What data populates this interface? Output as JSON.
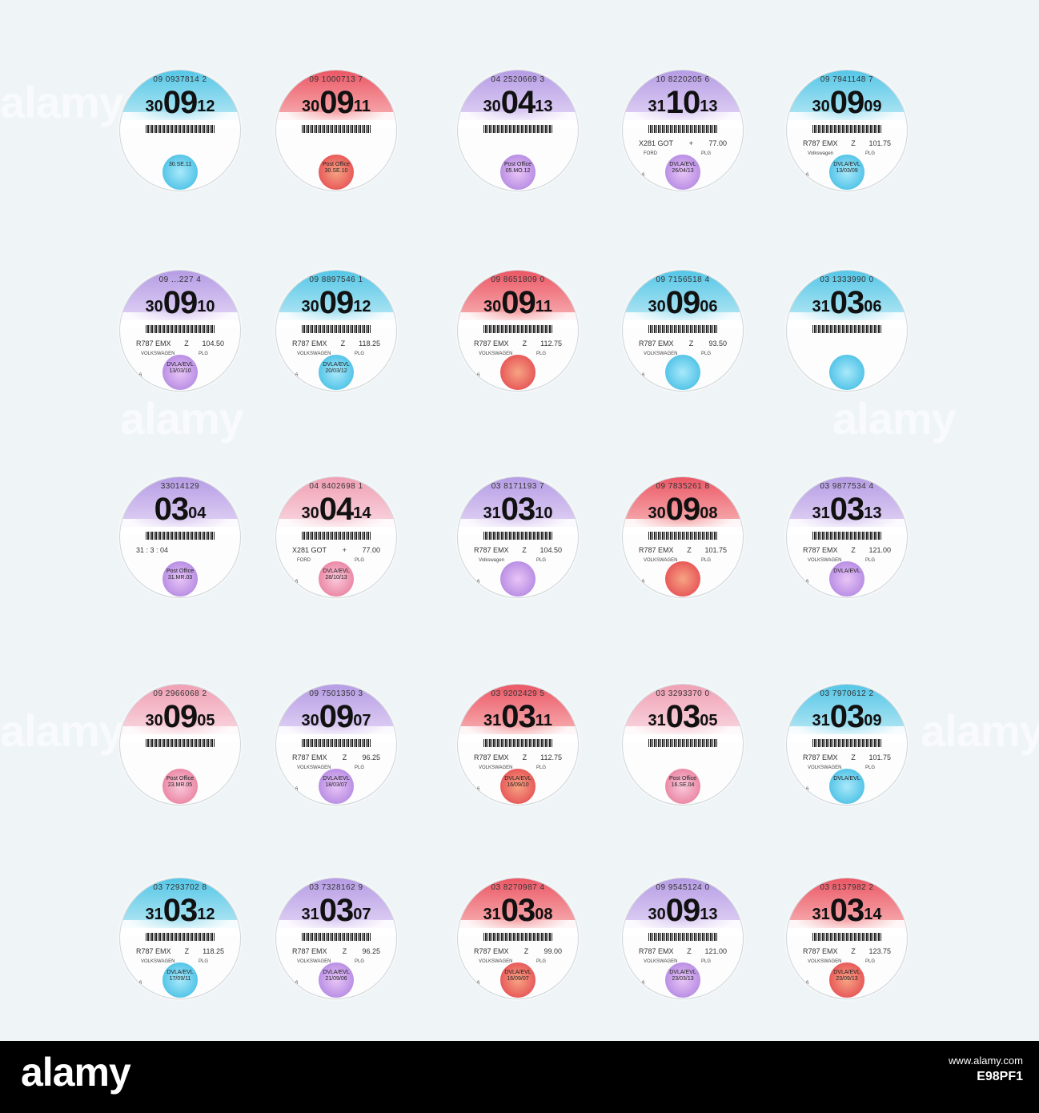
{
  "watermark_text": "alamy",
  "footer": {
    "logo": "alamy",
    "url": "www.alamy.com",
    "image_id": "E98PF1"
  },
  "discs": [
    {
      "serial": "09 0937814 2",
      "day": "30",
      "month": "09",
      "year": "12",
      "color": "blue",
      "reg": "",
      "band": "",
      "price": "",
      "make": "",
      "plg": "",
      "six": "",
      "seal": "",
      "seal_date": "30.SE.11"
    },
    {
      "serial": "09 1000713 7",
      "day": "30",
      "month": "09",
      "year": "11",
      "color": "red",
      "reg": "",
      "band": "",
      "price": "",
      "make": "",
      "plg": "",
      "six": "",
      "seal": "Post Office",
      "seal_date": "30.SE.10"
    },
    {
      "serial": "04 2520669 3",
      "day": "30",
      "month": "04",
      "year": "13",
      "color": "purple",
      "reg": "",
      "band": "",
      "price": "",
      "make": "",
      "plg": "",
      "six": "",
      "seal": "Post Office",
      "seal_date": "05.MO.12"
    },
    {
      "serial": "10 8220205 6",
      "day": "31",
      "month": "10",
      "year": "13",
      "color": "purple",
      "reg": "X281 GOT",
      "band": "+",
      "price": "77.00",
      "make": "FORD",
      "plg": "PLG",
      "six": "6",
      "seal": "DVLA/EVL",
      "seal_date": "26/04/13"
    },
    {
      "serial": "09 7941148 7",
      "day": "30",
      "month": "09",
      "year": "09",
      "color": "blue",
      "reg": "R787 EMX",
      "band": "Z",
      "price": "101.75",
      "make": "Volkswagen",
      "plg": "PLG",
      "six": "6",
      "seal": "DVLA/EVL",
      "seal_date": "13/03/09"
    },
    {
      "serial": "09 ...227 4",
      "day": "30",
      "month": "09",
      "year": "10",
      "color": "purple",
      "reg": "R787 EMX",
      "band": "Z",
      "price": "104.50",
      "make": "VOLKSWAGEN",
      "plg": "PLG",
      "six": "6",
      "seal": "DVLA/EVL",
      "seal_date": "13/03/10"
    },
    {
      "serial": "09 8897546 1",
      "day": "30",
      "month": "09",
      "year": "12",
      "color": "blue",
      "reg": "R787 EMX",
      "band": "Z",
      "price": "118.25",
      "make": "VOLKSWAGEN",
      "plg": "PLG",
      "six": "6",
      "seal": "DVLA/EVL",
      "seal_date": "20/03/12"
    },
    {
      "serial": "09 8651809 0",
      "day": "30",
      "month": "09",
      "year": "11",
      "color": "red",
      "reg": "R787 EMX",
      "band": "Z",
      "price": "112.75",
      "make": "VOLKSWAGEN",
      "plg": "PLG",
      "six": "6",
      "seal": "",
      "seal_date": ""
    },
    {
      "serial": "09 7156518 4",
      "day": "30",
      "month": "09",
      "year": "06",
      "color": "blue",
      "reg": "R787 EMX",
      "band": "Z",
      "price": "93.50",
      "make": "VOLKSWAGEN",
      "plg": "PLG",
      "six": "6",
      "seal": "",
      "seal_date": ""
    },
    {
      "serial": "03 1333990 0",
      "day": "31",
      "month": "03",
      "year": "06",
      "color": "blue",
      "reg": "",
      "band": "",
      "price": "",
      "make": "",
      "plg": "",
      "six": "",
      "seal": "",
      "seal_date": ""
    },
    {
      "serial": "33014129",
      "day": "",
      "month": "03",
      "year": "04",
      "color": "purple",
      "reg": "31 : 3 : 04",
      "band": "",
      "price": "",
      "make": "",
      "plg": "",
      "six": "",
      "seal": "Post Office",
      "seal_date": "31.MR.03"
    },
    {
      "serial": "04 8402698 1",
      "day": "30",
      "month": "04",
      "year": "14",
      "color": "pink",
      "reg": "X281 GOT",
      "band": "+",
      "price": "77.00",
      "make": "FORD",
      "plg": "PLG",
      "six": "6",
      "seal": "DVLA/EVL",
      "seal_date": "28/10/13"
    },
    {
      "serial": "03 8171193 7",
      "day": "31",
      "month": "03",
      "year": "10",
      "color": "purple",
      "reg": "R787 EMX",
      "band": "Z",
      "price": "104.50",
      "make": "Volkswagen",
      "plg": "PLG",
      "six": "6",
      "seal": "",
      "seal_date": ""
    },
    {
      "serial": "09 7835261 8",
      "day": "30",
      "month": "09",
      "year": "08",
      "color": "red",
      "reg": "R787 EMX",
      "band": "Z",
      "price": "101.75",
      "make": "VOLKSWAGEN",
      "plg": "PLG",
      "six": "6",
      "seal": "",
      "seal_date": ""
    },
    {
      "serial": "03 9877534 4",
      "day": "31",
      "month": "03",
      "year": "13",
      "color": "purple",
      "reg": "R787 EMX",
      "band": "Z",
      "price": "121.00",
      "make": "VOLKSWAGEN",
      "plg": "PLG",
      "six": "6",
      "seal": "DVLA/EVL",
      "seal_date": ""
    },
    {
      "serial": "09 2966068 2",
      "day": "30",
      "month": "09",
      "year": "05",
      "color": "pink",
      "reg": "",
      "band": "",
      "price": "",
      "make": "",
      "plg": "",
      "six": "",
      "seal": "Post Office",
      "seal_date": "23.MR.05"
    },
    {
      "serial": "09 7501350 3",
      "day": "30",
      "month": "09",
      "year": "07",
      "color": "purple",
      "reg": "R787 EMX",
      "band": "Z",
      "price": "96.25",
      "make": "VOLKSWAGEN",
      "plg": "PLG",
      "six": "6",
      "seal": "DVLA/EVL",
      "seal_date": "18/03/07"
    },
    {
      "serial": "03 9202429 5",
      "day": "31",
      "month": "03",
      "year": "11",
      "color": "red",
      "reg": "R787 EMX",
      "band": "Z",
      "price": "112.75",
      "make": "VOLKSWAGEN",
      "plg": "PLG",
      "six": "6",
      "seal": "DVLA/EVL",
      "seal_date": "16/09/10"
    },
    {
      "serial": "03 3293370 0",
      "day": "31",
      "month": "03",
      "year": "05",
      "color": "pink",
      "reg": "",
      "band": "",
      "price": "",
      "make": "",
      "plg": "",
      "six": "",
      "seal": "Post Office",
      "seal_date": "16.SE.04"
    },
    {
      "serial": "03 7970612 2",
      "day": "31",
      "month": "03",
      "year": "09",
      "color": "blue",
      "reg": "R787 EMX",
      "band": "Z",
      "price": "101.75",
      "make": "VOLKSWAGEN",
      "plg": "PLG",
      "six": "6",
      "seal": "DVLA/EVL",
      "seal_date": ""
    },
    {
      "serial": "03 7293702 8",
      "day": "31",
      "month": "03",
      "year": "12",
      "color": "blue",
      "reg": "R787 EMX",
      "band": "Z",
      "price": "118.25",
      "make": "VOLKSWAGEN",
      "plg": "PLG",
      "six": "6",
      "seal": "DVLA/EVL",
      "seal_date": "17/09/11"
    },
    {
      "serial": "03 7328162 9",
      "day": "31",
      "month": "03",
      "year": "07",
      "color": "purple",
      "reg": "R787 EMX",
      "band": "Z",
      "price": "96.25",
      "make": "VOLKSWAGEN",
      "plg": "PLG",
      "six": "6",
      "seal": "DVLA/EVL",
      "seal_date": "21/09/06"
    },
    {
      "serial": "03 8270987 4",
      "day": "31",
      "month": "03",
      "year": "08",
      "color": "red",
      "reg": "R787 EMX",
      "band": "Z",
      "price": "99.00",
      "make": "VOLKSWAGEN",
      "plg": "PLG",
      "six": "6",
      "seal": "DVLA/EVL",
      "seal_date": "16/09/07"
    },
    {
      "serial": "09 9545124 0",
      "day": "30",
      "month": "09",
      "year": "13",
      "color": "purple",
      "reg": "R787 EMX",
      "band": "Z",
      "price": "121.00",
      "make": "VOLKSWAGEN",
      "plg": "PLG",
      "six": "6",
      "seal": "DVLA/EVL",
      "seal_date": "23/03/13"
    },
    {
      "serial": "03 8137982 2",
      "day": "31",
      "month": "03",
      "year": "14",
      "color": "red",
      "reg": "R787 EMX",
      "band": "Z",
      "price": "123.75",
      "make": "VOLKSWAGEN",
      "plg": "PLG",
      "six": "6",
      "seal": "DVLA/EVL",
      "seal_date": "23/09/13"
    }
  ]
}
